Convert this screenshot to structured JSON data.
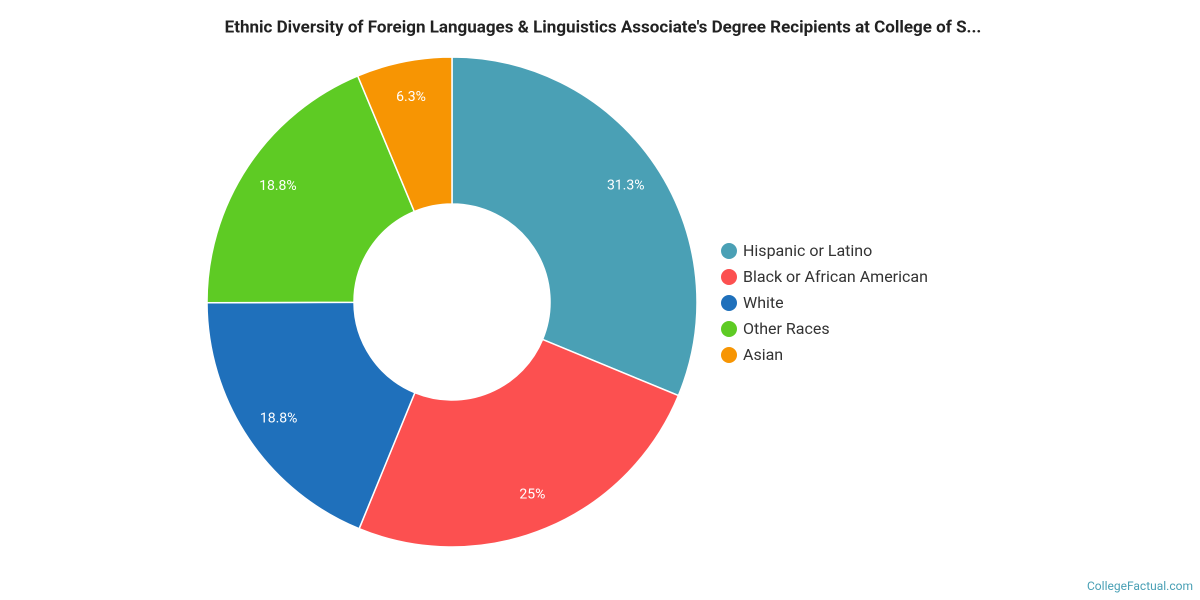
{
  "chart_data": {
    "type": "donut",
    "title": "Ethnic Diversity of Foreign Languages & Linguistics Associate's Degree Recipients at College of S...",
    "categories": [
      "Hispanic or Latino",
      "Black or African American",
      "White",
      "Other Races",
      "Asian"
    ],
    "values": [
      31.3,
      25,
      18.8,
      18.8,
      6.3
    ],
    "value_labels": [
      "31.3%",
      "25%",
      "18.8%",
      "18.8%",
      "6.3%"
    ],
    "colors": [
      "#4aa0b5",
      "#fc5050",
      "#1f70bb",
      "#5ecb24",
      "#f79503"
    ],
    "legend": "right",
    "source": "CollegeFactual.com"
  }
}
